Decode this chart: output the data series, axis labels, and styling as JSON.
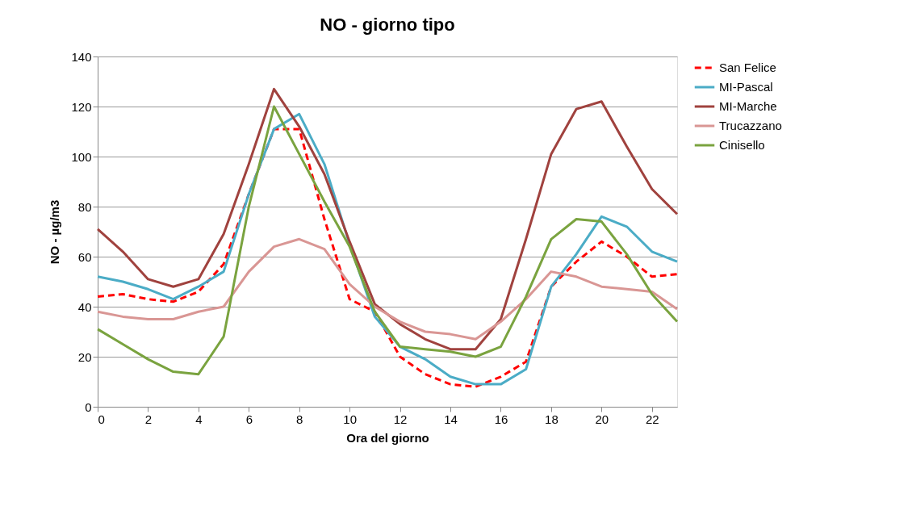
{
  "chart_data": {
    "type": "line",
    "title": "NO - giorno tipo",
    "xlabel": "Ora del giorno",
    "ylabel": "NO -  µg/m3",
    "x": [
      0,
      1,
      2,
      3,
      4,
      5,
      6,
      7,
      8,
      9,
      10,
      11,
      12,
      13,
      14,
      15,
      16,
      17,
      18,
      19,
      20,
      21,
      22,
      23
    ],
    "xlim": [
      0,
      23
    ],
    "xticks": [
      0,
      2,
      4,
      6,
      8,
      10,
      12,
      14,
      16,
      18,
      20,
      22
    ],
    "ylim": [
      0,
      140
    ],
    "yticks": [
      0,
      20,
      40,
      60,
      80,
      100,
      120,
      140
    ],
    "grid": "y",
    "legend": "right",
    "marker": "none",
    "series": [
      {
        "name": "San Felice",
        "color": "#ff0000",
        "line_style": "dashed",
        "values": [
          44,
          45,
          43,
          42,
          46,
          57,
          85,
          111,
          111,
          75,
          43,
          38,
          20,
          13,
          9,
          8,
          12,
          18,
          48,
          58,
          66,
          60,
          52,
          53
        ]
      },
      {
        "name": "MI-Pascal",
        "color": "#4bacc6",
        "line_style": "solid",
        "values": [
          52,
          50,
          47,
          43,
          48,
          54,
          85,
          111,
          117,
          97,
          65,
          36,
          24,
          19,
          12,
          9,
          9,
          15,
          48,
          61,
          76,
          72,
          62,
          58
        ]
      },
      {
        "name": "MI-Marche",
        "color": "#a0423e",
        "line_style": "solid",
        "values": [
          71,
          62,
          51,
          48,
          51,
          69,
          97,
          127,
          112,
          93,
          66,
          41,
          33,
          27,
          23,
          23,
          35,
          67,
          101,
          119,
          122,
          104,
          87,
          77
        ]
      },
      {
        "name": "Trucazzano",
        "color": "#d99694",
        "line_style": "solid",
        "values": [
          38,
          36,
          35,
          35,
          38,
          40,
          54,
          64,
          67,
          63,
          49,
          40,
          34,
          30,
          29,
          27,
          34,
          43,
          54,
          52,
          48,
          47,
          46,
          39
        ]
      },
      {
        "name": "Cinisello",
        "color": "#7aa33f",
        "line_style": "solid",
        "values": [
          31,
          25,
          19,
          14,
          13,
          28,
          80,
          120,
          101,
          82,
          64,
          38,
          24,
          23,
          22,
          20,
          24,
          44,
          67,
          75,
          74,
          61,
          45,
          34
        ]
      }
    ]
  }
}
